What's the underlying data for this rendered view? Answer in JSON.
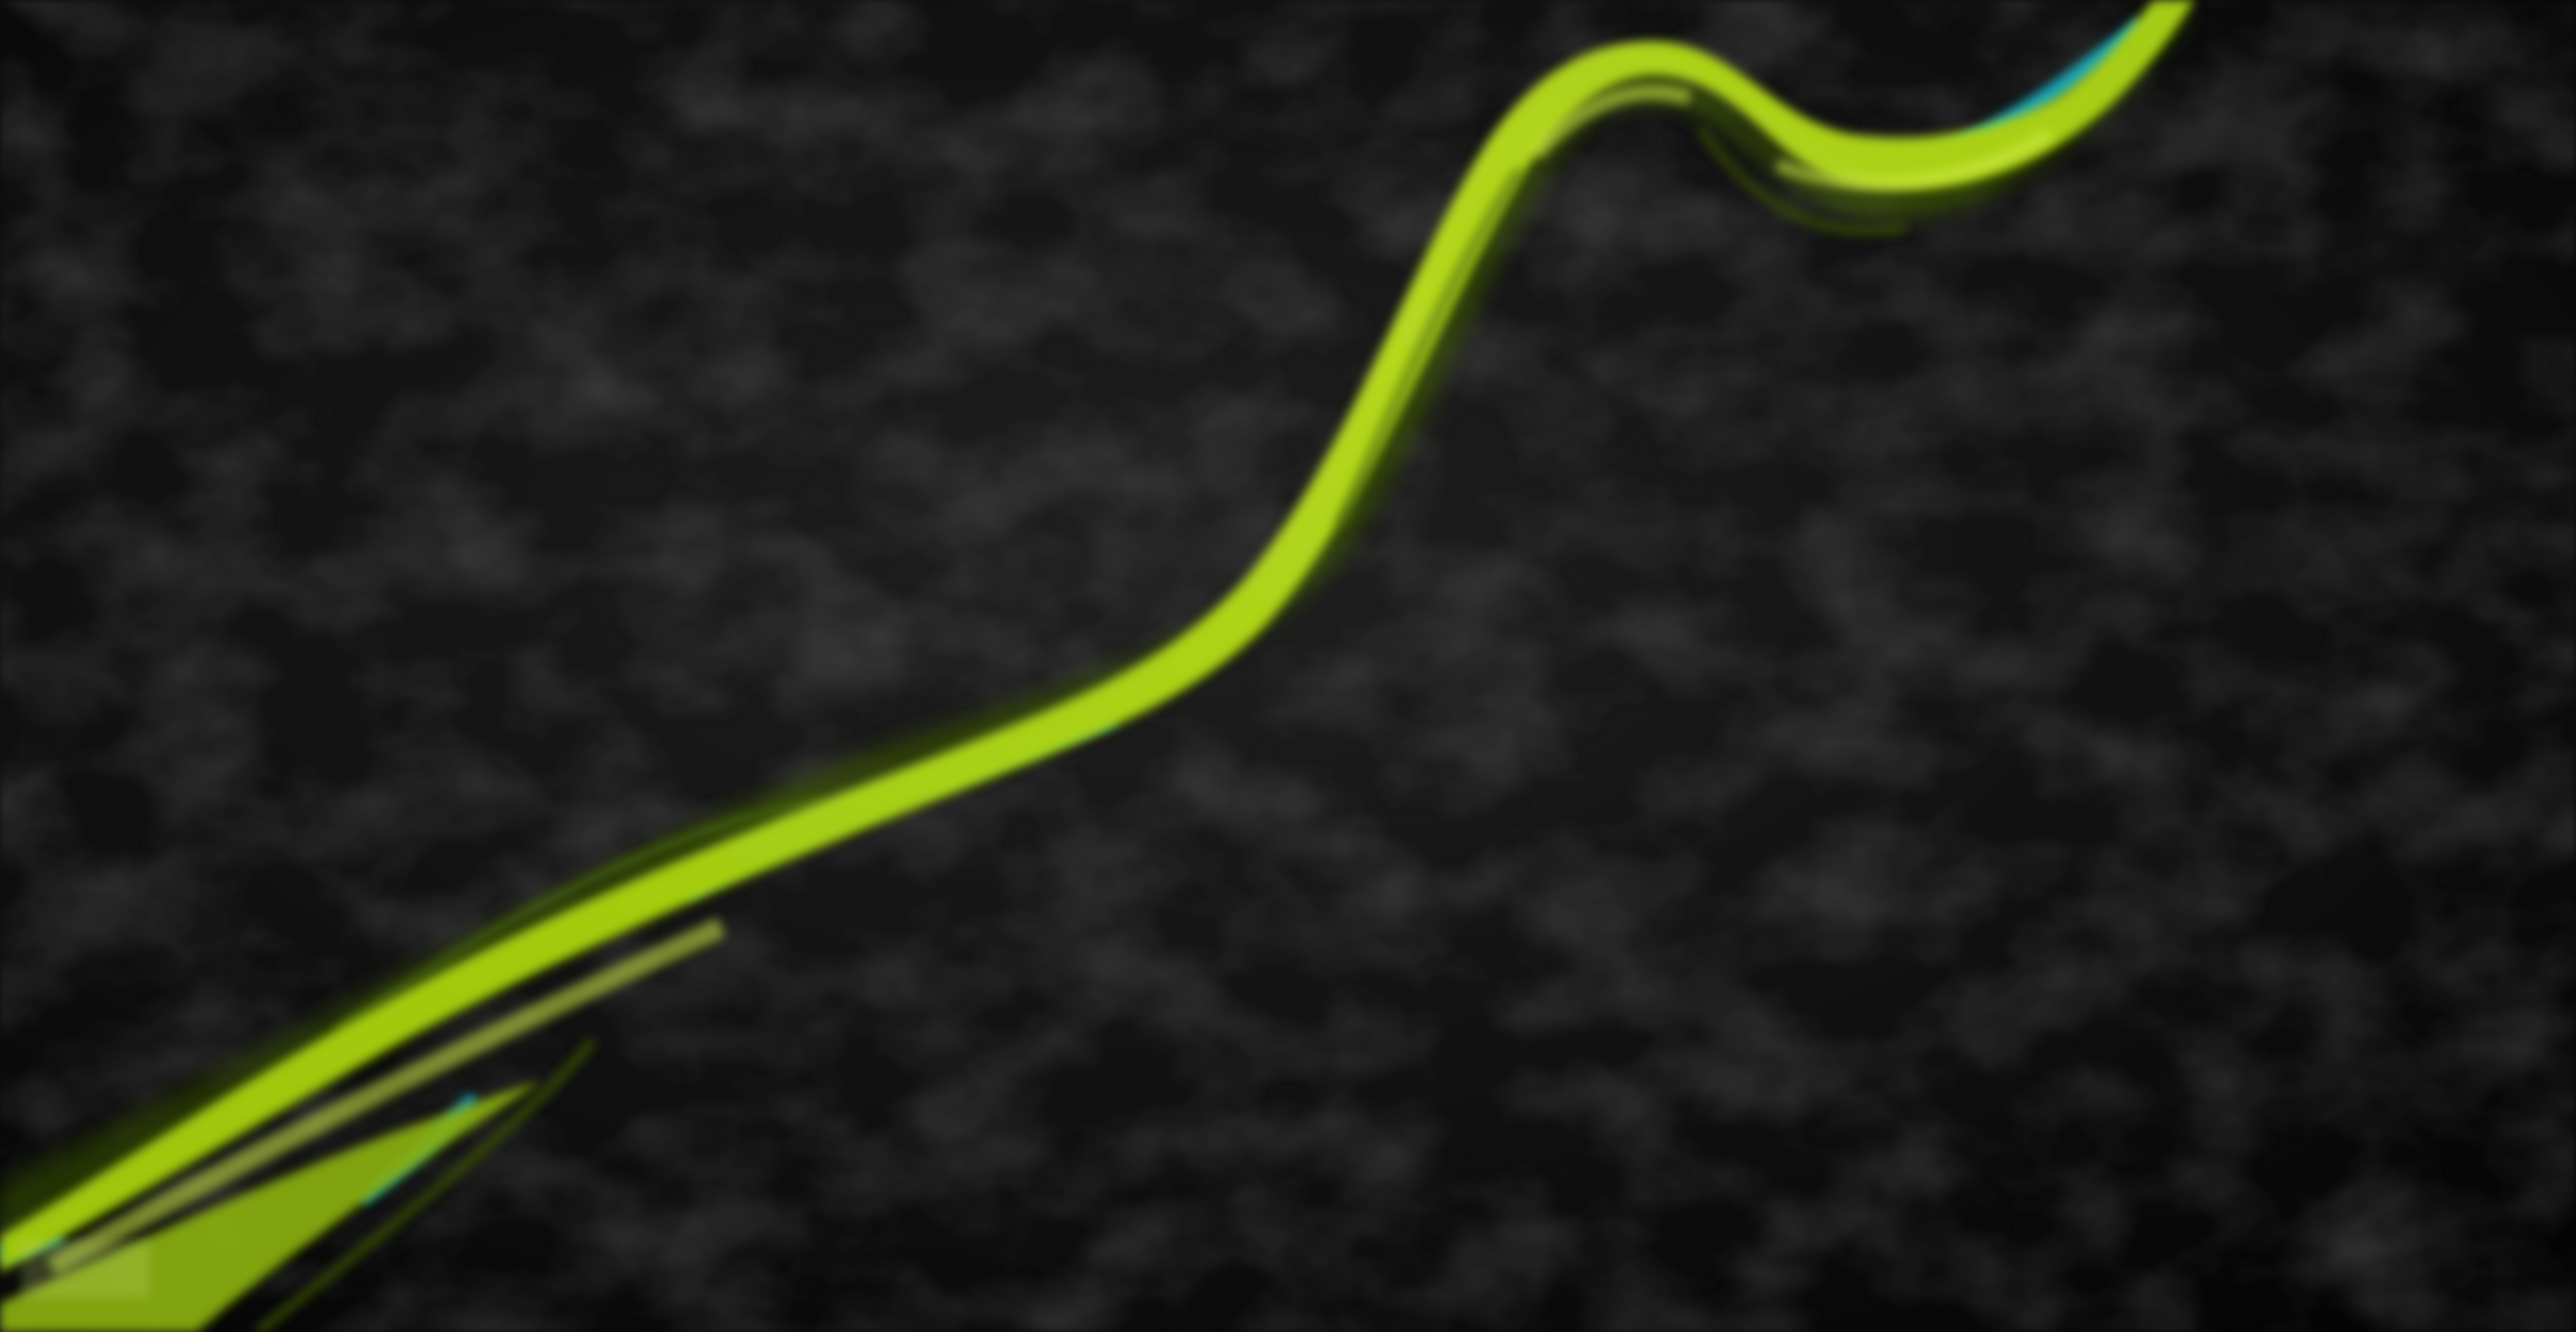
{
  "scene": {
    "kind": "abstract wallpaper",
    "background_color": "#050505",
    "texture_color": "#2a2a2a",
    "ribbon_primary_color": "#a6cf12",
    "ribbon_highlight_color": "#c8e83a",
    "ribbon_shadow_color": "#3f5a06",
    "ribbon_accent_color": "#19b3c8"
  }
}
